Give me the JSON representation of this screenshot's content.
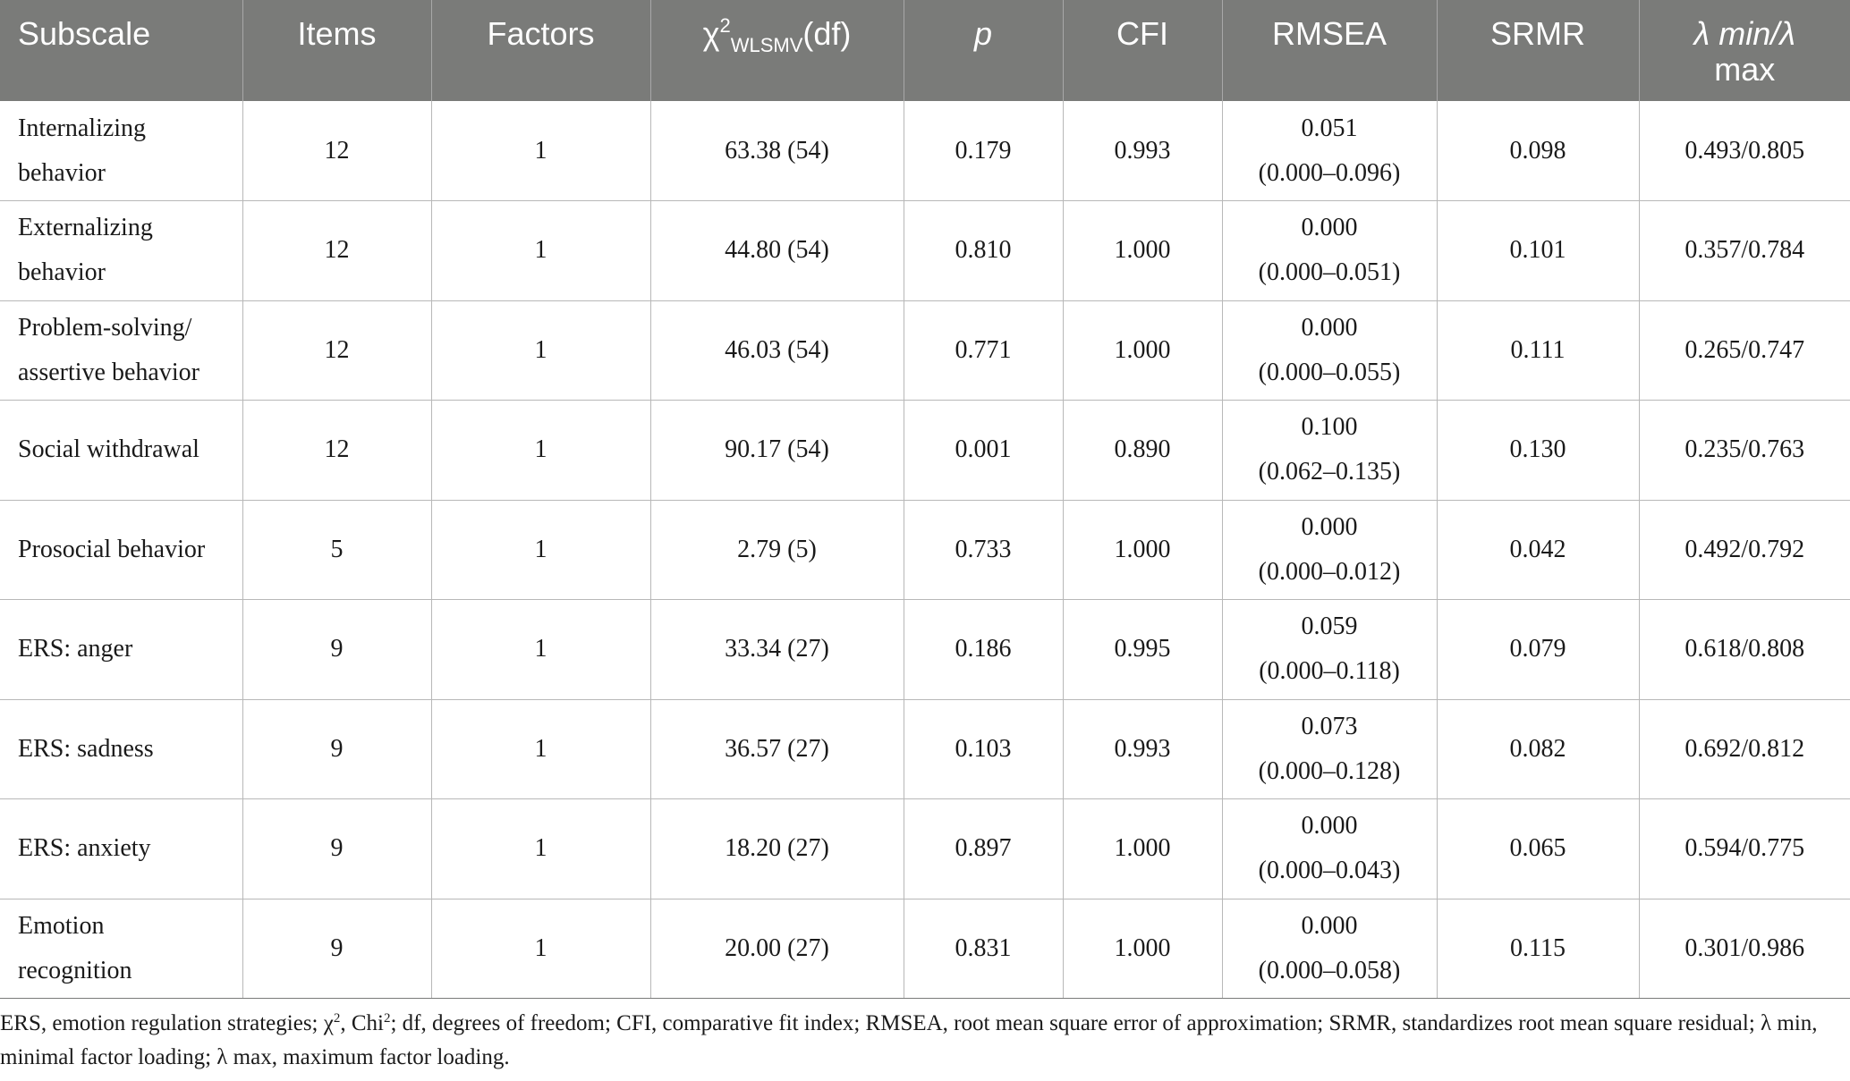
{
  "table": {
    "headers": {
      "subscale": "Subscale",
      "items": "Items",
      "factors": "Factors",
      "chi_symbol": "χ",
      "chi_sup": "2",
      "chi_sub": "WLSMV",
      "chi_df": "(df)",
      "p": "p",
      "cfi": "CFI",
      "rmsea": "RMSEA",
      "srmr": "SRMR",
      "lambda_line1": "λ min/λ",
      "lambda_line2": "max"
    },
    "rows": [
      {
        "subscale_line1": "Internalizing",
        "subscale_line2": "behavior",
        "items": "12",
        "factors": "1",
        "chi": "63.38 (54)",
        "p": "0.179",
        "cfi": "0.993",
        "rmsea": "0.051",
        "rmsea_ci": "(0.000–0.096)",
        "srmr": "0.098",
        "lambda": "0.493/0.805"
      },
      {
        "subscale_line1": "Externalizing",
        "subscale_line2": "behavior",
        "items": "12",
        "factors": "1",
        "chi": "44.80 (54)",
        "p": "0.810",
        "cfi": "1.000",
        "rmsea": "0.000",
        "rmsea_ci": "(0.000–0.051)",
        "srmr": "0.101",
        "lambda": "0.357/0.784"
      },
      {
        "subscale_line1": "Problem-solving/",
        "subscale_line2": "assertive behavior",
        "items": "12",
        "factors": "1",
        "chi": "46.03 (54)",
        "p": "0.771",
        "cfi": "1.000",
        "rmsea": "0.000",
        "rmsea_ci": "(0.000–0.055)",
        "srmr": "0.111",
        "lambda": "0.265/0.747"
      },
      {
        "subscale_line1": "Social withdrawal",
        "subscale_line2": "",
        "items": "12",
        "factors": "1",
        "chi": "90.17 (54)",
        "p": "0.001",
        "cfi": "0.890",
        "rmsea": "0.100",
        "rmsea_ci": "(0.062–0.135)",
        "srmr": "0.130",
        "lambda": "0.235/0.763"
      },
      {
        "subscale_line1": "Prosocial behavior",
        "subscale_line2": "",
        "items": "5",
        "factors": "1",
        "chi": "2.79 (5)",
        "p": "0.733",
        "cfi": "1.000",
        "rmsea": "0.000",
        "rmsea_ci": "(0.000–0.012)",
        "srmr": "0.042",
        "lambda": "0.492/0.792"
      },
      {
        "subscale_line1": "ERS: anger",
        "subscale_line2": "",
        "items": "9",
        "factors": "1",
        "chi": "33.34 (27)",
        "p": "0.186",
        "cfi": "0.995",
        "rmsea": "0.059",
        "rmsea_ci": "(0.000–0.118)",
        "srmr": "0.079",
        "lambda": "0.618/0.808"
      },
      {
        "subscale_line1": "ERS: sadness",
        "subscale_line2": "",
        "items": "9",
        "factors": "1",
        "chi": "36.57 (27)",
        "p": "0.103",
        "cfi": "0.993",
        "rmsea": "0.073",
        "rmsea_ci": "(0.000–0.128)",
        "srmr": "0.082",
        "lambda": "0.692/0.812"
      },
      {
        "subscale_line1": "ERS: anxiety",
        "subscale_line2": "",
        "items": "9",
        "factors": "1",
        "chi": "18.20 (27)",
        "p": "0.897",
        "cfi": "1.000",
        "rmsea": "0.000",
        "rmsea_ci": "(0.000–0.043)",
        "srmr": "0.065",
        "lambda": "0.594/0.775"
      },
      {
        "subscale_line1": "Emotion",
        "subscale_line2": "recognition",
        "items": "9",
        "factors": "1",
        "chi": "20.00 (27)",
        "p": "0.831",
        "cfi": "1.000",
        "rmsea": "0.000",
        "rmsea_ci": "(0.000–0.058)",
        "srmr": "0.115",
        "lambda": "0.301/0.986"
      }
    ]
  },
  "footnote": {
    "part1": "ERS, emotion regulation strategies; χ",
    "sup1": "2",
    "part2": ", Chi",
    "sup2": "2",
    "part3": "; df, degrees of freedom; CFI, comparative fit index; RMSEA, root mean square error of approximation; SRMR, standardizes root mean square residual;  λ min, minimal factor loading;  λ max, maximum factor loading."
  }
}
